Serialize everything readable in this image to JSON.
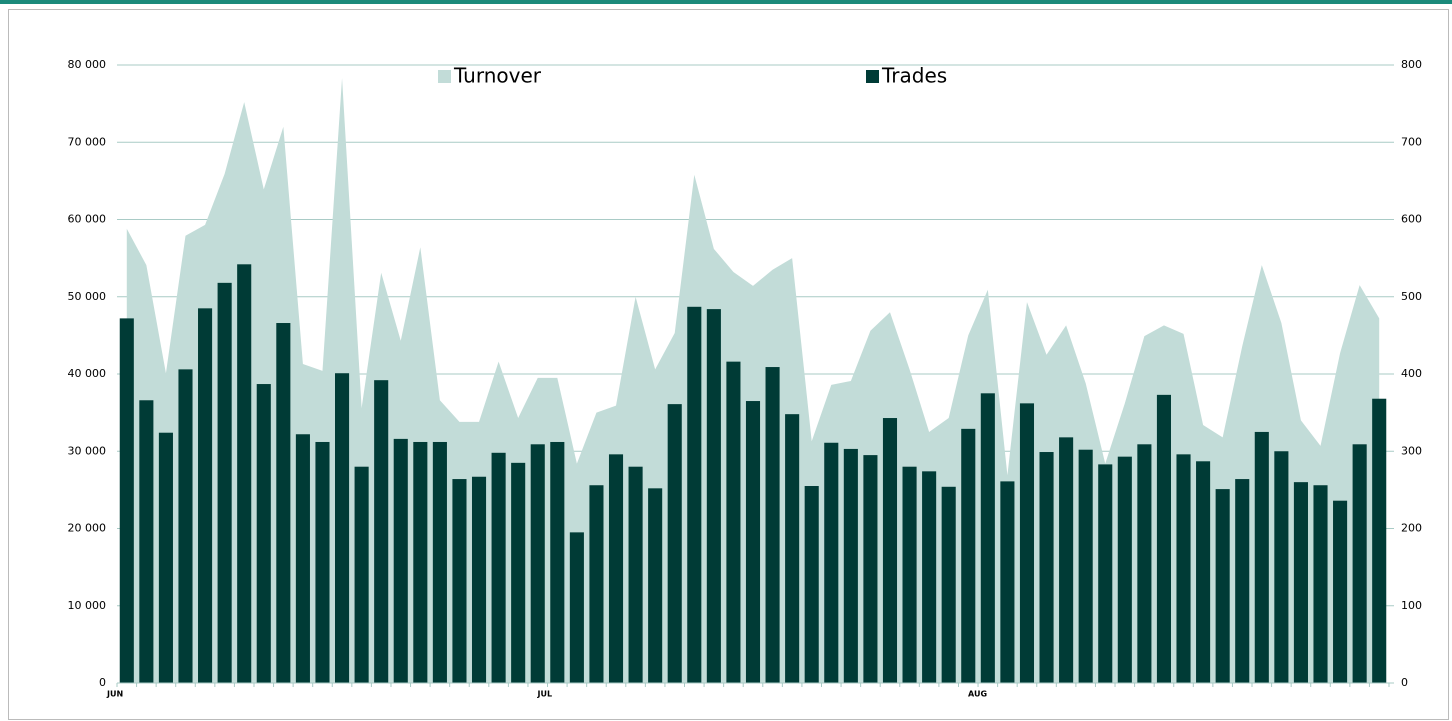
{
  "chart_data": {
    "type": "combo",
    "categories": [
      "JUN",
      null,
      null,
      null,
      null,
      null,
      null,
      null,
      null,
      null,
      null,
      null,
      null,
      null,
      null,
      null,
      null,
      null,
      null,
      null,
      null,
      null,
      "JUL",
      null,
      null,
      null,
      null,
      null,
      null,
      null,
      null,
      null,
      null,
      null,
      null,
      null,
      null,
      null,
      null,
      null,
      null,
      null,
      null,
      null,
      "AUG",
      null,
      null,
      null,
      null,
      null,
      null,
      null,
      null,
      null,
      null,
      null,
      null,
      null,
      null,
      null,
      null,
      null,
      null,
      null,
      null
    ],
    "series": [
      {
        "name": "Turnover",
        "type": "area",
        "axis": "y",
        "color": "#c2dcd8",
        "values": [
          58800,
          54100,
          40100,
          57900,
          59300,
          65900,
          75200,
          63900,
          72000,
          41300,
          40400,
          78300,
          35600,
          53100,
          44300,
          56400,
          36600,
          33800,
          33800,
          41600,
          34300,
          39500,
          39500,
          28400,
          35000,
          35900,
          50000,
          40600,
          45300,
          65800,
          56200,
          53200,
          51400,
          53500,
          55000,
          31300,
          38600,
          39100,
          45600,
          48000,
          40600,
          32500,
          34300,
          45000,
          50900,
          26900,
          49300,
          42500,
          46300,
          38800,
          28400,
          36200,
          44900,
          46300,
          45200,
          33400,
          31800,
          43600,
          54100,
          46600,
          34000,
          30700,
          42700,
          51500,
          47200
        ]
      },
      {
        "name": "Trades",
        "type": "bar",
        "axis": "y2",
        "color": "#003b36",
        "values": [
          472,
          366,
          324,
          406,
          485,
          518,
          542,
          387,
          466,
          322,
          312,
          401,
          280,
          392,
          316,
          312,
          312,
          264,
          267,
          298,
          285,
          309,
          312,
          195,
          256,
          296,
          280,
          252,
          361,
          487,
          484,
          416,
          365,
          409,
          348,
          255,
          311,
          303,
          295,
          343,
          280,
          274,
          254,
          329,
          375,
          261,
          362,
          299,
          318,
          302,
          283,
          293,
          309,
          373,
          296,
          287,
          251,
          264,
          325,
          300,
          260,
          256,
          236,
          309,
          368
        ]
      }
    ],
    "ylim": [
      0,
      80000
    ],
    "yticks": [
      0,
      {
        "value": 10000,
        "label": "10 000"
      },
      {
        "value": 20000,
        "label": "20 000"
      },
      {
        "value": 30000,
        "label": "30 000"
      },
      {
        "value": 40000,
        "label": "40 000"
      },
      {
        "value": 50000,
        "label": "50 000"
      },
      {
        "value": 60000,
        "label": "60 000"
      },
      {
        "value": 70000,
        "label": "70 000"
      },
      {
        "value": 80000,
        "label": "80 000"
      }
    ],
    "y2lim": [
      0,
      800
    ],
    "y2ticks": [
      0,
      100,
      200,
      300,
      400,
      500,
      600,
      700,
      800
    ],
    "grid": true
  }
}
